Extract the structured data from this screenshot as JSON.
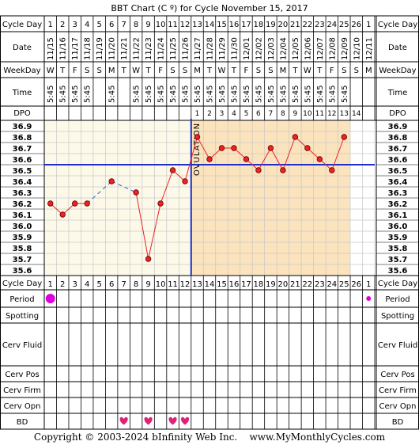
{
  "title": "BBT Chart (C º) for Cycle November 15, 2017",
  "row_labels": {
    "cycle_day": "Cycle Day",
    "date": "Date",
    "weekday": "WeekDay",
    "time": "Time",
    "dpo": "DPO",
    "period": "Period",
    "spotting": "Spotting",
    "cerv_fluid": "Cerv Fluid",
    "cerv_pos": "Cerv Pos",
    "cerv_firm": "Cerv Firm",
    "cerv_opn": "Cerv Opn",
    "bd": "BD"
  },
  "cycle_days": [
    "1",
    "2",
    "3",
    "4",
    "5",
    "6",
    "7",
    "8",
    "9",
    "10",
    "11",
    "12",
    "13",
    "14",
    "15",
    "16",
    "17",
    "18",
    "19",
    "20",
    "21",
    "22",
    "23",
    "24",
    "25",
    "26",
    "1"
  ],
  "dates": [
    "11/15",
    "11/16",
    "11/17",
    "11/18",
    "11/19",
    "11/20",
    "11/21",
    "11/22",
    "11/23",
    "11/24",
    "11/25",
    "11/26",
    "11/27",
    "11/28",
    "11/29",
    "11/30",
    "12/01",
    "12/02",
    "12/03",
    "12/04",
    "12/05",
    "12/06",
    "12/07",
    "12/08",
    "12/09",
    "12/10",
    "12/11"
  ],
  "weekdays": [
    "W",
    "T",
    "F",
    "S",
    "S",
    "M",
    "T",
    "W",
    "T",
    "F",
    "S",
    "S",
    "M",
    "T",
    "W",
    "T",
    "F",
    "S",
    "S",
    "M",
    "T",
    "W",
    "T",
    "F",
    "S",
    "S",
    "M"
  ],
  "times": [
    "5:45",
    "5:45",
    "5:45",
    "5:45",
    "",
    "5:45",
    "",
    "5:45",
    "5:45",
    "5:45",
    "5:45",
    "5:45",
    "5:45",
    "5:45",
    "5:45",
    "5:45",
    "5:45",
    "5:45",
    "5:45",
    "5:45",
    "5:45",
    "5:45",
    "5:45",
    "5:45",
    "5:45",
    "",
    ""
  ],
  "dpo": [
    "",
    "",
    "",
    "",
    "",
    "",
    "",
    "",
    "",
    "",
    "",
    "",
    "1",
    "2",
    "3",
    "4",
    "5",
    "6",
    "7",
    "8",
    "9",
    "10",
    "11",
    "12",
    "13",
    "14",
    ""
  ],
  "ovulation_label": "OVULATION",
  "copyright": "Copyright © 2003-2024 bInfinity Web Inc.    www.MyMonthlyCycles.com",
  "chart_data": {
    "type": "line",
    "y_ticks": [
      "36.9",
      "36.8",
      "36.7",
      "36.6",
      "36.5",
      "36.4",
      "36.3",
      "36.2",
      "36.1",
      "36.0",
      "35.9",
      "35.8",
      "35.7",
      "35.6"
    ],
    "ylim": [
      35.6,
      36.9
    ],
    "x": [
      1,
      2,
      3,
      4,
      5,
      6,
      7,
      8,
      9,
      10,
      11,
      12,
      13,
      14,
      15,
      16,
      17,
      18,
      19,
      20,
      21,
      22,
      23,
      24,
      25,
      26,
      27
    ],
    "temps": [
      36.2,
      36.1,
      36.2,
      36.2,
      null,
      36.4,
      null,
      36.3,
      35.7,
      36.2,
      36.5,
      36.4,
      36.8,
      36.6,
      36.7,
      36.7,
      36.6,
      36.5,
      36.7,
      36.5,
      36.8,
      36.7,
      36.6,
      36.5,
      36.8,
      null,
      null
    ],
    "coverline": 36.55,
    "ovulation_day": 12,
    "period_days": [
      1,
      27
    ],
    "bd_days": [
      7,
      9,
      11,
      12
    ],
    "colors": {
      "pre_bg": "#fdf9e9",
      "post_bg": "#fbe3bd",
      "line": "#ee2222",
      "dash": "#2a5bd7",
      "cover": "#1f2fc8",
      "grid": "#c8c8c8",
      "period": "#dd00dd",
      "bd": "#dd2277"
    }
  }
}
